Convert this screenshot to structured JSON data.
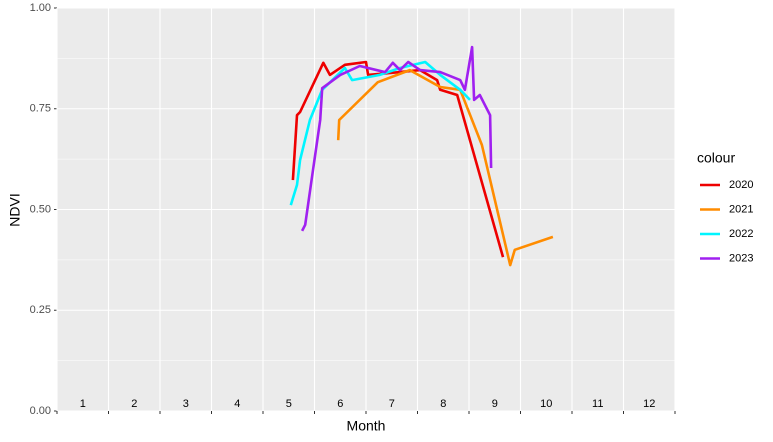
{
  "chart_data": {
    "type": "line",
    "x_label": "Month",
    "y_label": "NDVI",
    "legend_title": "colour",
    "legend_position": "right",
    "grid": true,
    "xlim": [
      1,
      13
    ],
    "xticks": [
      1,
      2,
      3,
      4,
      5,
      6,
      7,
      8,
      9,
      10,
      11,
      12,
      13
    ],
    "month_labels": [
      "1",
      "2",
      "3",
      "4",
      "5",
      "6",
      "7",
      "8",
      "9",
      "10",
      "11",
      "12"
    ],
    "ylim": [
      0,
      1
    ],
    "yticks": [
      {
        "value": 0,
        "label": "0.00"
      },
      {
        "value": 0.25,
        "label": "0.25"
      },
      {
        "value": 0.5,
        "label": "0.50"
      },
      {
        "value": 0.75,
        "label": "0.75"
      },
      {
        "value": 1,
        "label": "1.00"
      }
    ],
    "series": [
      {
        "name": "2020",
        "color": "#ee0000",
        "x": [
          5.58,
          5.66,
          5.72,
          6.17,
          6.3,
          6.59,
          7.0,
          7.04,
          7.66,
          8.05,
          8.38,
          8.44,
          8.77,
          9.66
        ],
        "values": [
          0.573,
          0.734,
          0.742,
          0.864,
          0.834,
          0.859,
          0.866,
          0.834,
          0.841,
          0.846,
          0.821,
          0.797,
          0.784,
          0.382
        ]
      },
      {
        "name": "2021",
        "color": "#ff8c00",
        "x": [
          6.46,
          6.48,
          7.23,
          7.85,
          8.44,
          8.83,
          9.25,
          9.8,
          9.89,
          10.63
        ],
        "values": [
          0.672,
          0.722,
          0.816,
          0.846,
          0.804,
          0.797,
          0.66,
          0.362,
          0.4,
          0.432
        ]
      },
      {
        "name": "2022",
        "color": "#00f5ff",
        "x": [
          5.54,
          5.66,
          5.72,
          5.91,
          6.15,
          6.59,
          6.73,
          7.27,
          7.66,
          8.15,
          8.44,
          8.83,
          9.02
        ],
        "values": [
          0.511,
          0.561,
          0.623,
          0.722,
          0.797,
          0.851,
          0.821,
          0.834,
          0.851,
          0.866,
          0.834,
          0.797,
          0.772
        ]
      },
      {
        "name": "2023",
        "color": "#a020f0",
        "x": [
          5.76,
          5.82,
          5.97,
          6.11,
          6.15,
          6.5,
          6.88,
          7.37,
          7.52,
          7.66,
          7.82,
          8.05,
          8.44,
          8.83,
          8.92,
          9.06,
          9.1,
          9.21,
          9.41,
          9.43
        ],
        "values": [
          0.447,
          0.462,
          0.598,
          0.722,
          0.801,
          0.834,
          0.856,
          0.841,
          0.864,
          0.846,
          0.866,
          0.846,
          0.841,
          0.821,
          0.797,
          0.903,
          0.772,
          0.784,
          0.734,
          0.603
        ]
      }
    ]
  }
}
